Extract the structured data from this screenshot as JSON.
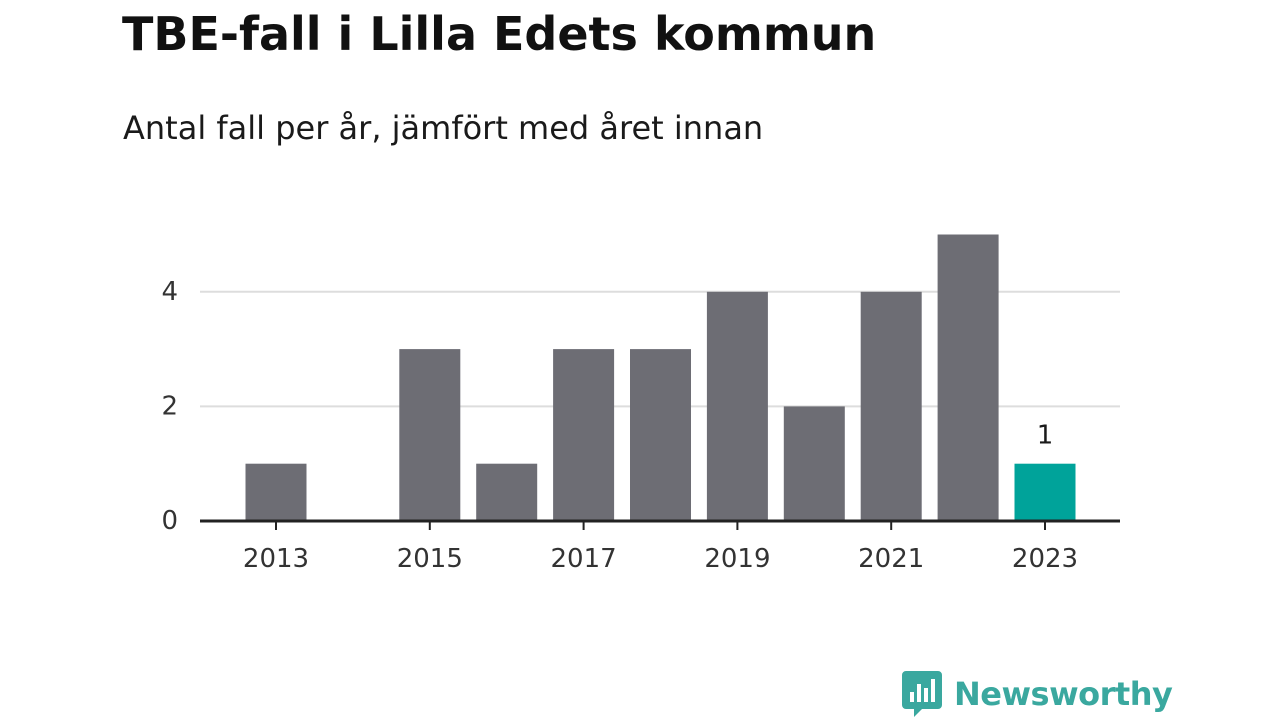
{
  "colors": {
    "bar": "#6d6d74",
    "highlight": "#00a39a",
    "grid": "#dddddd",
    "axis": "#222222",
    "brand": "#3aa89f"
  },
  "brand": {
    "name": "Newsworthy",
    "icon": "newsworthy-logo-icon"
  },
  "chart_data": {
    "type": "bar",
    "title": "TBE-fall i Lilla Edets kommun",
    "subtitle": "Antal fall per år, jämfört med året innan",
    "xlabel": "",
    "ylabel": "",
    "categories": [
      "2013",
      "2014",
      "2015",
      "2016",
      "2017",
      "2018",
      "2019",
      "2020",
      "2021",
      "2022",
      "2023"
    ],
    "values": [
      1,
      0,
      3,
      1,
      3,
      3,
      4,
      2,
      4,
      5,
      1
    ],
    "highlight_index": 10,
    "data_labels": [
      {
        "category": "2023",
        "text": "1"
      }
    ],
    "x_tick_labels": [
      "2013",
      "2015",
      "2017",
      "2019",
      "2021",
      "2023"
    ],
    "y_ticks": [
      0,
      2,
      4
    ],
    "ylim": [
      0,
      5
    ],
    "grid": true,
    "legend": "none"
  }
}
